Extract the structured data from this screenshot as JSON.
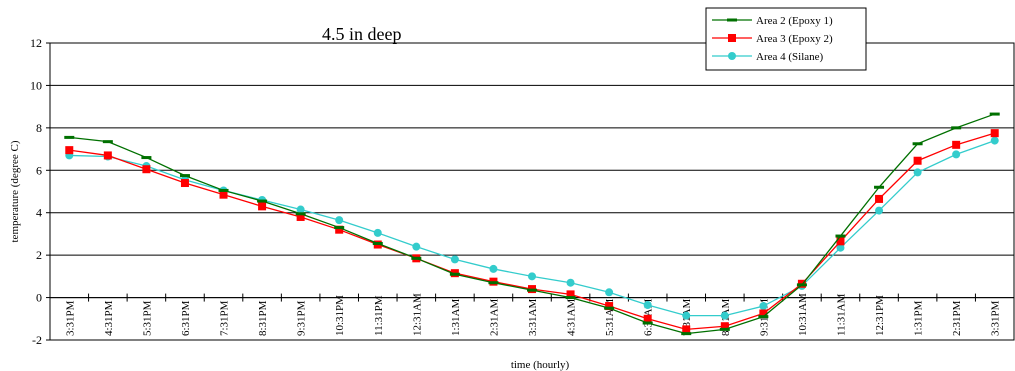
{
  "chart_data": {
    "type": "line",
    "title": "4.5 in deep",
    "xlabel": "time (hourly)",
    "ylabel": "temperature (degree C)",
    "ylim": [
      -2,
      12
    ],
    "yticks": [
      -2,
      0,
      2,
      4,
      6,
      8,
      10,
      12
    ],
    "grid": "horizontal",
    "legend_position": "top-right",
    "categories": [
      "3:31PM",
      "4:31PM",
      "5:31PM",
      "6:31PM",
      "7:31PM",
      "8:31PM",
      "9:31PM",
      "10:31PM",
      "11:31PM",
      "12:31AM",
      "1:31AM",
      "2:31AM",
      "3:31AM",
      "4:31AM",
      "5:31AM",
      "6:31AM",
      "7:31AM",
      "8:31AM",
      "9:31AM",
      "10:31AM",
      "11:31AM",
      "12:31PM",
      "1:31PM",
      "2:31PM",
      "3:31PM"
    ],
    "series": [
      {
        "name": "Area 2 (Epoxy 1)",
        "color": "#007000",
        "marker": "dash",
        "values": [
          7.55,
          7.35,
          6.6,
          5.75,
          5.05,
          4.55,
          3.95,
          3.3,
          2.55,
          1.85,
          1.1,
          0.7,
          0.35,
          0.0,
          -0.5,
          -1.2,
          -1.7,
          -1.5,
          -0.9,
          0.6,
          2.9,
          5.2,
          7.25,
          8.0,
          8.65
        ]
      },
      {
        "name": "Area 3 (Epoxy 2)",
        "color": "#ff0000",
        "marker": "square",
        "values": [
          6.95,
          6.7,
          6.05,
          5.4,
          4.85,
          4.3,
          3.8,
          3.2,
          2.5,
          1.85,
          1.15,
          0.75,
          0.4,
          0.15,
          -0.4,
          -1.0,
          -1.5,
          -1.35,
          -0.75,
          0.65,
          2.65,
          4.65,
          6.45,
          7.2,
          7.75
        ]
      },
      {
        "name": "Area 4 (Silane)",
        "color": "#33cccc",
        "marker": "circle",
        "values": [
          6.7,
          6.65,
          6.2,
          5.55,
          5.05,
          4.6,
          4.15,
          3.65,
          3.05,
          2.4,
          1.8,
          1.35,
          1.0,
          0.7,
          0.25,
          -0.35,
          -0.85,
          -0.85,
          -0.4,
          0.55,
          2.35,
          4.1,
          5.9,
          6.75,
          7.4
        ]
      }
    ]
  }
}
